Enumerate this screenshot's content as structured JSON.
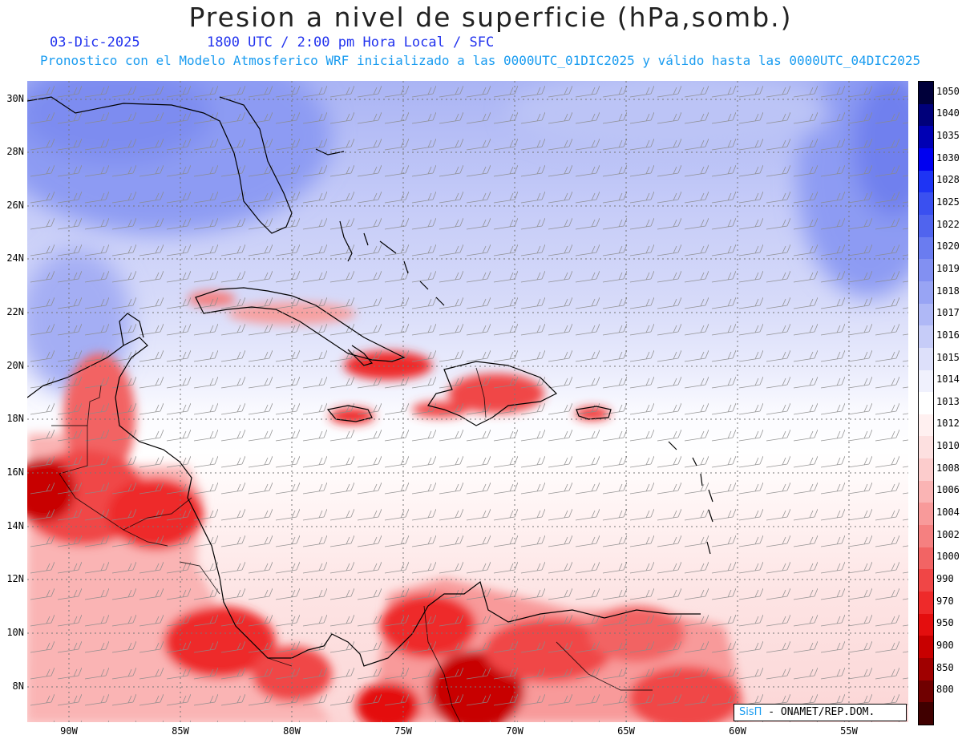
{
  "title": "Presion a nivel de superficie (hPa,somb.)",
  "date": "03-Dic-2025",
  "time": "1800 UTC / 2:00 pm Hora Local / SFC",
  "description": "Pronostico con el Modelo Atmosferico WRF inicializado a las 0000UTC_01DIC2025 y válido hasta las  0000UTC_04DIC2025",
  "credit": {
    "brand": "SisΠ",
    "text": " - ONAMET/REP.DOM."
  },
  "lat_labels": [
    "30N",
    "28N",
    "26N",
    "24N",
    "22N",
    "20N",
    "18N",
    "16N",
    "14N",
    "12N",
    "10N",
    "8N"
  ],
  "lon_labels": [
    "90W",
    "85W",
    "80W",
    "75W",
    "70W",
    "65W",
    "60W",
    "55W"
  ],
  "legend": [
    {
      "value": "1050",
      "color": "#00003a"
    },
    {
      "value": "1040",
      "color": "#00007a"
    },
    {
      "value": "1035",
      "color": "#0000b4"
    },
    {
      "value": "1030",
      "color": "#0000f0"
    },
    {
      "value": "1028",
      "color": "#1e34f4"
    },
    {
      "value": "1025",
      "color": "#3a50f0"
    },
    {
      "value": "1022",
      "color": "#5064ee"
    },
    {
      "value": "1020",
      "color": "#6a7cf0"
    },
    {
      "value": "1019",
      "color": "#8290f2"
    },
    {
      "value": "1018",
      "color": "#98a4f4"
    },
    {
      "value": "1017",
      "color": "#afb8f6"
    },
    {
      "value": "1016",
      "color": "#c6ccf8"
    },
    {
      "value": "1015",
      "color": "#dde0fa"
    },
    {
      "value": "1014",
      "color": "#f0f1fd"
    },
    {
      "value": "1013",
      "color": "#ffffff"
    },
    {
      "value": "1012",
      "color": "#fff0f0"
    },
    {
      "value": "1010",
      "color": "#fde0e0"
    },
    {
      "value": "1008",
      "color": "#fccccc"
    },
    {
      "value": "1006",
      "color": "#fab4b4"
    },
    {
      "value": "1004",
      "color": "#f89a9a"
    },
    {
      "value": "1002",
      "color": "#f58080"
    },
    {
      "value": "1000",
      "color": "#f26464"
    },
    {
      "value": "990",
      "color": "#f04646"
    },
    {
      "value": "970",
      "color": "#ee2a2a"
    },
    {
      "value": "950",
      "color": "#e40e0e"
    },
    {
      "value": "900",
      "color": "#c80000"
    },
    {
      "value": "850",
      "color": "#a00000"
    },
    {
      "value": "800",
      "color": "#700000"
    },
    {
      "value": "",
      "color": "#400000"
    }
  ]
}
